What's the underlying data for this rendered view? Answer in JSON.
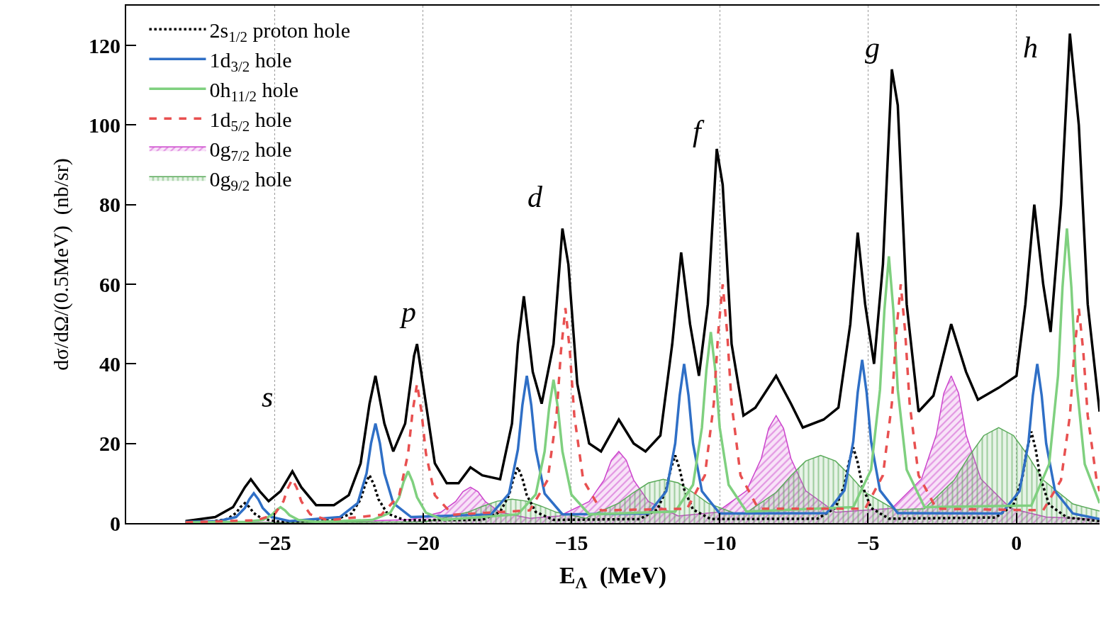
{
  "chart_data": {
    "type": "line",
    "xlabel": "E$_{Λ}$  (MeV)",
    "ylabel": "dσ/dΩ/(0.5MeV)  (nb/sr)",
    "xlim": [
      -30,
      2.8
    ],
    "ylim": [
      0,
      130
    ],
    "xticks": [
      {
        "value": -25,
        "label": "−25"
      },
      {
        "value": -20,
        "label": "−20"
      },
      {
        "value": -15,
        "label": "−15"
      },
      {
        "value": -10,
        "label": "−10"
      },
      {
        "value": -5,
        "label": "−5"
      },
      0
    ],
    "yticks": [
      0,
      20,
      40,
      60,
      80,
      100,
      120
    ],
    "grid": "x",
    "legend": "top left",
    "annotations": [
      "s",
      "p",
      "d",
      "f",
      "g",
      "h"
    ],
    "series": [
      {
        "color": "#000000",
        "line_style": "solid",
        "x": [
          -28,
          -27,
          -26.4,
          -26,
          -25.8,
          -25.5,
          -25.2,
          -24.8,
          -24.4,
          -24.1,
          -23.6,
          -23,
          -22.5,
          -22.1,
          -21.8,
          -21.6,
          -21.3,
          -21,
          -20.6,
          -20.3,
          -20.2,
          -20,
          -19.6,
          -19.2,
          -18.8,
          -18.4,
          -18,
          -17.4,
          -17,
          -16.8,
          -16.6,
          -16.3,
          -16,
          -15.6,
          -15.3,
          -15.1,
          -14.8,
          -14.4,
          -14,
          -13.4,
          -12.9,
          -12.5,
          -12,
          -11.6,
          -11.3,
          -11,
          -10.7,
          -10.4,
          -10.1,
          -9.9,
          -9.6,
          -9.2,
          -8.8,
          -8.1,
          -7.6,
          -7.2,
          -6.5,
          -6,
          -5.6,
          -5.35,
          -5.1,
          -4.8,
          -4.5,
          -4.2,
          -4,
          -3.7,
          -3.3,
          -2.8,
          -2.2,
          -1.7,
          -1.3,
          -0.6,
          0,
          0.3,
          0.6,
          0.9,
          1.15,
          1.5,
          1.8,
          2.1,
          2.4,
          2.8
        ],
        "values": [
          0.5,
          1.5,
          4,
          9,
          11,
          8,
          5.5,
          8,
          13,
          9,
          4.5,
          4.5,
          7,
          15,
          30,
          37,
          25,
          18,
          25,
          42,
          45,
          35,
          15,
          10,
          10,
          14,
          12,
          11,
          25,
          45,
          57,
          38,
          30,
          45,
          74,
          65,
          35,
          20,
          18,
          26,
          20,
          18,
          22,
          45,
          68,
          50,
          37,
          55,
          94,
          85,
          45,
          27,
          29,
          37,
          30,
          24,
          26,
          29,
          50,
          73,
          55,
          40,
          65,
          114,
          105,
          55,
          28,
          32,
          50,
          38,
          31,
          34,
          37,
          55,
          80,
          60,
          48,
          80,
          123,
          100,
          55,
          28
        ]
      },
      {
        "name": "2s$_{1/2}$ proton hole",
        "color": "#000000",
        "line_style": "dotted",
        "x": [
          -28,
          -27.2,
          -26.6,
          -26.3,
          -26.15,
          -26,
          -25.85,
          -25.7,
          -25.4,
          -24.8,
          -23,
          -22.4,
          -22.1,
          -21.95,
          -21.8,
          -21.65,
          -21.5,
          -21.2,
          -20.6,
          -18,
          -17.4,
          -17.1,
          -16.95,
          -16.8,
          -16.65,
          -16.5,
          -16.2,
          -15.6,
          -12.7,
          -12.1,
          -11.8,
          -11.65,
          -11.5,
          -11.35,
          -11.2,
          -10.9,
          -10.3,
          -6.7,
          -6.1,
          -5.8,
          -5.65,
          -5.5,
          -5.35,
          -5.2,
          -4.9,
          -4.3,
          -0.7,
          -0.1,
          0.2,
          0.35,
          0.5,
          0.65,
          0.8,
          1.1,
          1.7,
          2.8
        ],
        "values": [
          0.3,
          0.3,
          1,
          2.5,
          4,
          5,
          4,
          2.5,
          1,
          0.3,
          0.7,
          2.4,
          6,
          9.6,
          12,
          9.6,
          6,
          2.4,
          0.7,
          0.8,
          2.8,
          7,
          11.2,
          14,
          11.2,
          7,
          2.8,
          0.8,
          1,
          3.4,
          8.5,
          13.6,
          17,
          13.6,
          8.5,
          3.4,
          1,
          1.1,
          3.8,
          9.5,
          15.2,
          19,
          15.2,
          9.5,
          3.8,
          1.1,
          1.4,
          4.6,
          11.5,
          18.4,
          23,
          18.4,
          11.5,
          4.6,
          1.4,
          0.5
        ]
      },
      {
        "name": "1d$_{3/2}$ hole",
        "color": "#2f6fc6",
        "line_style": "solid",
        "x": [
          -28,
          -26.9,
          -26.3,
          -26,
          -25.85,
          -25.7,
          -25.55,
          -25.4,
          -25.1,
          -24.5,
          -22.8,
          -22.2,
          -21.9,
          -21.75,
          -21.6,
          -21.45,
          -21.3,
          -21,
          -20.4,
          -17.7,
          -17.1,
          -16.8,
          -16.65,
          -16.5,
          -16.35,
          -16.2,
          -15.9,
          -15.3,
          -12.4,
          -11.8,
          -11.5,
          -11.35,
          -11.2,
          -11.05,
          -10.9,
          -10.6,
          -10,
          -6.4,
          -5.8,
          -5.5,
          -5.35,
          -5.2,
          -5.05,
          -4.9,
          -4.6,
          -4,
          -0.5,
          0.1,
          0.4,
          0.55,
          0.7,
          0.85,
          1,
          1.3,
          1.9,
          2.8
        ],
        "values": [
          0.3,
          0.5,
          1.5,
          3.8,
          6,
          7.5,
          6,
          3.8,
          1.5,
          0.5,
          1.5,
          5,
          12.5,
          20,
          25,
          20,
          12.5,
          5,
          1.5,
          2.2,
          7.4,
          18.5,
          29.6,
          37,
          29.6,
          18.5,
          7.4,
          2.2,
          2.4,
          8,
          20,
          32,
          40,
          32,
          20,
          8,
          2.4,
          2.5,
          8.2,
          20.5,
          32.8,
          41,
          32.8,
          20.5,
          8.2,
          2.5,
          2.4,
          8,
          20,
          32,
          40,
          32,
          20,
          8,
          2.4,
          1
        ]
      },
      {
        "name": "0h$_{11/2}$ hole",
        "color": "#7fd07f",
        "line_style": "solid",
        "x": [
          -28,
          -26,
          -25.4,
          -25.1,
          -24.95,
          -24.8,
          -24.65,
          -24.5,
          -24.2,
          -23.6,
          -21.7,
          -21.1,
          -20.8,
          -20.65,
          -20.5,
          -20.35,
          -20.2,
          -19.9,
          -19.3,
          -16.8,
          -16.2,
          -15.9,
          -15.75,
          -15.6,
          -15.45,
          -15.3,
          -15,
          -14.4,
          -11.5,
          -10.9,
          -10.6,
          -10.45,
          -10.3,
          -10.15,
          -10,
          -9.7,
          -9.1,
          -5.5,
          -4.9,
          -4.6,
          -4.45,
          -4.3,
          -4.15,
          -4,
          -3.7,
          -3.1,
          0.5,
          1.1,
          1.4,
          1.55,
          1.7,
          1.85,
          2,
          2.3,
          2.8
        ],
        "values": [
          0.2,
          0.3,
          0.8,
          2,
          3.2,
          4,
          3.2,
          2,
          0.8,
          0.3,
          0.8,
          2.6,
          6.5,
          10.4,
          13,
          10.4,
          6.5,
          2.6,
          0.8,
          2.2,
          7.2,
          18,
          28.8,
          36,
          28.8,
          18,
          7.2,
          2.2,
          2.9,
          9.6,
          24,
          38.4,
          48,
          38.4,
          24,
          9.6,
          2.9,
          4,
          13.4,
          33.5,
          53.6,
          67,
          53.6,
          33.5,
          13.4,
          4,
          4.4,
          14.8,
          37,
          59.2,
          74,
          59.2,
          37,
          14.8,
          5
        ]
      },
      {
        "name": "1d$_{5/2}$ hole",
        "color": "#e85050",
        "line_style": "dashed",
        "x": [
          -28,
          -25.6,
          -25,
          -24.7,
          -24.55,
          -24.4,
          -24.25,
          -24.1,
          -23.8,
          -23.2,
          -21.4,
          -20.8,
          -20.5,
          -20.35,
          -20.2,
          -20.05,
          -19.9,
          -19.6,
          -19,
          -16.4,
          -15.8,
          -15.5,
          -15.35,
          -15.2,
          -15.05,
          -14.9,
          -14.6,
          -14,
          -11.1,
          -10.5,
          -10.2,
          -10.05,
          -9.9,
          -9.75,
          -9.6,
          -9.3,
          -8.7,
          -5.1,
          -4.5,
          -4.2,
          -4.05,
          -3.9,
          -3.75,
          -3.6,
          -3.3,
          -2.7,
          0.9,
          1.5,
          1.8,
          1.95,
          2.1,
          2.25,
          2.4,
          2.7,
          2.8
        ],
        "values": [
          0.2,
          0.7,
          2.2,
          5.5,
          8.8,
          11,
          8.8,
          5.5,
          2.2,
          0.7,
          2.1,
          7,
          17.5,
          28,
          35,
          28,
          17.5,
          7,
          2.1,
          3.2,
          10.8,
          27,
          43.2,
          54,
          43.2,
          27,
          10.8,
          3.2,
          3.6,
          12,
          30,
          48,
          60,
          48,
          30,
          12,
          3.6,
          3.6,
          12,
          30,
          48,
          60,
          48,
          30,
          12,
          3.6,
          3.2,
          10.8,
          27,
          43.2,
          54,
          43.2,
          27,
          10.8,
          8
        ]
      },
      {
        "name": "0g$_{7/2}$ hole",
        "color": "#cc44cc",
        "type": "area",
        "x": [
          -28,
          -23,
          -20.4,
          -19.4,
          -18.9,
          -18.65,
          -18.4,
          -18.15,
          -17.9,
          -17.4,
          -16.4,
          -15.4,
          -14.4,
          -13.9,
          -13.65,
          -13.4,
          -13.15,
          -12.9,
          -12.4,
          -11.4,
          -10.1,
          -9.1,
          -8.6,
          -8.35,
          -8.1,
          -7.85,
          -7.6,
          -7.1,
          -6.1,
          -4.2,
          -3.2,
          -2.7,
          -2.45,
          -2.2,
          -1.95,
          -1.7,
          -1.2,
          -0.2,
          1,
          2.8
        ],
        "values": [
          0,
          0.3,
          0.9,
          2.7,
          5.4,
          7.9,
          9,
          7.9,
          5.4,
          2.7,
          1.2,
          1.8,
          5.4,
          10.8,
          15.8,
          18,
          15.8,
          10.8,
          5.4,
          1.8,
          2.7,
          8.1,
          16.2,
          23.8,
          27,
          23.8,
          16.2,
          8.1,
          2.7,
          3.7,
          11.1,
          22.2,
          32.6,
          37,
          32.6,
          22.2,
          11.1,
          3.7,
          1.5,
          1
        ]
      },
      {
        "name": "0g$_{9/2}$ hole",
        "color": "#5aaa5a",
        "type": "area",
        "x": [
          -28,
          -20,
          -19.5,
          -18.5,
          -18,
          -17.5,
          -17,
          -16.5,
          -16,
          -15.5,
          -14.5,
          -14.4,
          -13.4,
          -12.9,
          -12.4,
          -11.9,
          -11.4,
          -10.9,
          -10.4,
          -9.4,
          -9.1,
          -8.1,
          -7.6,
          -7.1,
          -6.6,
          -6.1,
          -5.6,
          -5.1,
          -4.1,
          -3.1,
          -2.1,
          -1.6,
          -1.1,
          -0.6,
          -0.1,
          0.4,
          0.9,
          1.9,
          2.8
        ],
        "values": [
          0,
          0.3,
          0.9,
          2.7,
          4.2,
          5.5,
          6,
          5.5,
          4.2,
          2.7,
          1.2,
          1.7,
          5,
          7.7,
          10.1,
          11,
          10.1,
          7.7,
          5,
          2.2,
          2.6,
          7.7,
          11.9,
          15.6,
          17,
          15.6,
          11.9,
          7.7,
          3.4,
          3.6,
          10.8,
          16.8,
          22,
          24,
          22,
          16.8,
          10.8,
          4.8,
          3
        ]
      }
    ]
  }
}
